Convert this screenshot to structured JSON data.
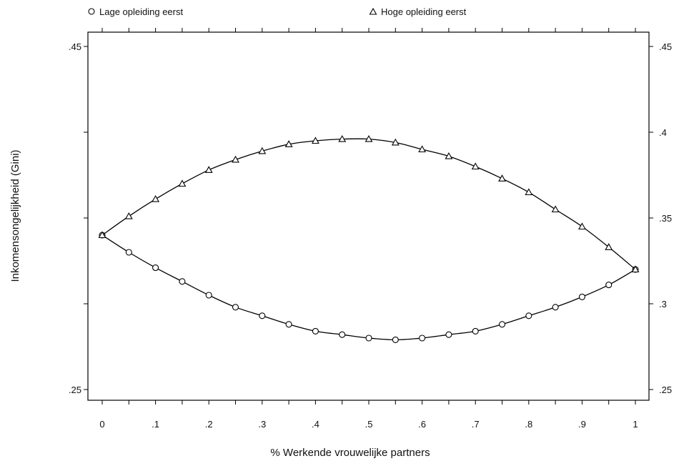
{
  "chart_data": {
    "type": "line",
    "xlabel": "% Werkende vrouwelijke partners",
    "ylabel": "Inkomensongelijkheid (Gini)",
    "xlim": [
      0,
      1
    ],
    "ylim": [
      0.25,
      0.45
    ],
    "x_ticks": [
      0,
      0.05,
      0.1,
      0.15,
      0.2,
      0.25,
      0.3,
      0.35,
      0.4,
      0.45,
      0.5,
      0.55,
      0.6,
      0.65,
      0.7,
      0.75,
      0.8,
      0.85,
      0.9,
      0.95,
      1
    ],
    "x_tick_labels": [
      "0",
      "",
      ".1",
      "",
      ".2",
      "",
      ".3",
      "",
      ".4",
      "",
      ".5",
      "",
      ".6",
      "",
      ".7",
      "",
      ".8",
      "",
      ".9",
      "",
      "1"
    ],
    "y_left_ticks": [
      0.25,
      0.3,
      0.35,
      0.4,
      0.45
    ],
    "y_left_tick_labels": [
      ".25",
      "",
      "",
      "",
      ".45"
    ],
    "y_right_tick_labels": [
      ".25",
      ".3",
      ".35",
      ".4",
      ".45"
    ],
    "grid": false,
    "legend_position": "top",
    "x": [
      0,
      0.05,
      0.1,
      0.15,
      0.2,
      0.25,
      0.3,
      0.35,
      0.4,
      0.45,
      0.5,
      0.55,
      0.6,
      0.65,
      0.7,
      0.75,
      0.8,
      0.85,
      0.9,
      0.95,
      1
    ],
    "series": [
      {
        "name": "Lage opleiding eerst",
        "marker": "circle",
        "values": [
          0.34,
          0.33,
          0.321,
          0.313,
          0.305,
          0.298,
          0.293,
          0.288,
          0.284,
          0.282,
          0.28,
          0.279,
          0.28,
          0.282,
          0.284,
          0.288,
          0.293,
          0.298,
          0.304,
          0.311,
          0.32
        ]
      },
      {
        "name": "Hoge opleiding eerst",
        "marker": "triangle",
        "values": [
          0.34,
          0.351,
          0.361,
          0.37,
          0.378,
          0.384,
          0.389,
          0.393,
          0.395,
          0.396,
          0.396,
          0.394,
          0.39,
          0.386,
          0.38,
          0.373,
          0.365,
          0.355,
          0.345,
          0.333,
          0.32
        ]
      }
    ]
  }
}
